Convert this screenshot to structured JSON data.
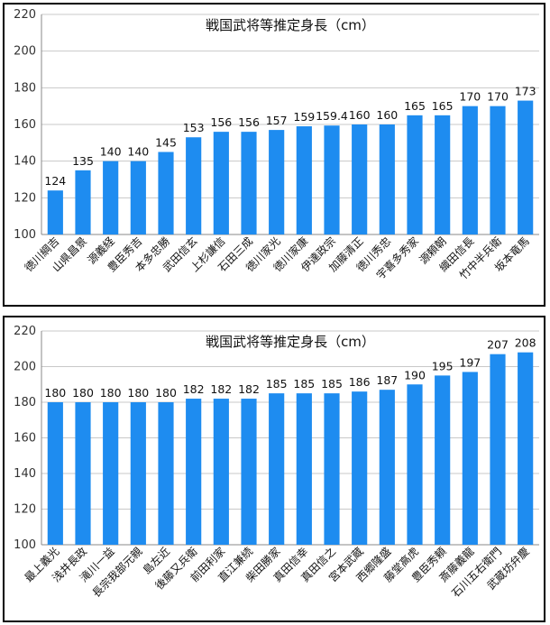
{
  "chart_data": [
    {
      "type": "bar",
      "title": "戦国武将等推定身長（cm）",
      "xlabel": "",
      "ylabel": "",
      "ylim": [
        100,
        220
      ],
      "yticks": [
        100,
        120,
        140,
        160,
        180,
        200,
        220
      ],
      "grid": true,
      "bar_color": "#1e8cf0",
      "categories": [
        "徳川綱吉",
        "山県昌景",
        "源義経",
        "豊臣秀吉",
        "本多忠勝",
        "武田信玄",
        "上杉謙信",
        "石田三成",
        "徳川家光",
        "徳川家康",
        "伊達政宗",
        "加藤清正",
        "徳川秀忠",
        "宇喜多秀家",
        "源頼朝",
        "織田信長",
        "竹中半兵衛",
        "坂本竜馬"
      ],
      "values": [
        124,
        135,
        140,
        140,
        145,
        153,
        156,
        156,
        157,
        159,
        159.4,
        160,
        160,
        165,
        165,
        170,
        170,
        173
      ],
      "data_labels": [
        "124",
        "135",
        "140",
        "140",
        "145",
        "153",
        "156",
        "156",
        "157",
        "159",
        "159.4",
        "160",
        "160",
        "165",
        "165",
        "170",
        "170",
        "173"
      ]
    },
    {
      "type": "bar",
      "title": "戦国武将等推定身長（cm）",
      "xlabel": "",
      "ylabel": "",
      "ylim": [
        100,
        220
      ],
      "yticks": [
        100,
        120,
        140,
        160,
        180,
        200,
        220
      ],
      "grid": true,
      "bar_color": "#1e8cf0",
      "categories": [
        "最上義光",
        "浅井長政",
        "滝川一益",
        "長宗我部元親",
        "島左近",
        "後藤又兵衛",
        "前田利家",
        "直江兼続",
        "柴田勝家",
        "真田信幸",
        "真田信之",
        "宮本武蔵",
        "西郷隆盛",
        "藤堂高虎",
        "豊臣秀頼",
        "斎藤義龍",
        "石川五右衛門",
        "武蔵坊弁慶"
      ],
      "values": [
        180,
        180,
        180,
        180,
        180,
        182,
        182,
        182,
        185,
        185,
        185,
        186,
        187,
        190,
        195,
        197,
        207,
        208
      ],
      "data_labels": [
        "180",
        "180",
        "180",
        "180",
        "180",
        "182",
        "182",
        "182",
        "185",
        "185",
        "185",
        "186",
        "187",
        "190",
        "195",
        "197",
        "207",
        "208"
      ]
    }
  ]
}
